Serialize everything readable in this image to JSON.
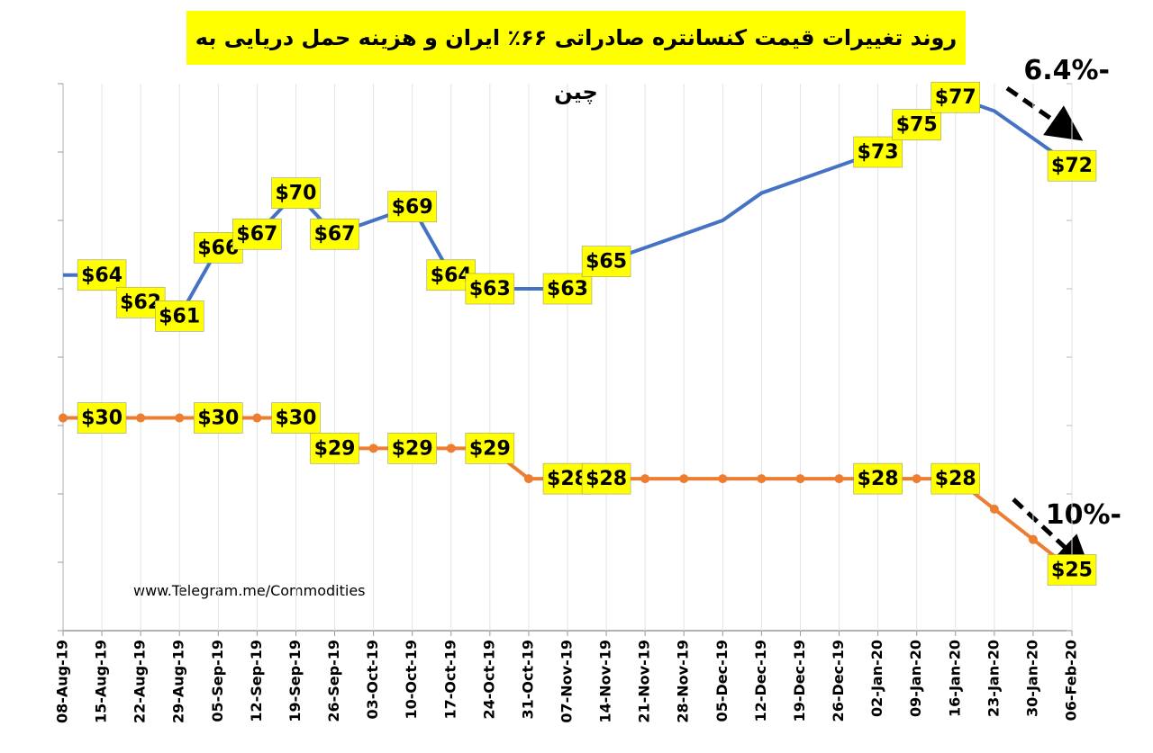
{
  "chart_data": {
    "type": "line",
    "title": "روند تغییرات قیمت کنسانتره صادراتی ۶۶٪ ایران و هزینه حمل دریایی به چین",
    "categories": [
      "08-Aug-19",
      "15-Aug-19",
      "22-Aug-19",
      "29-Aug-19",
      "05-Sep-19",
      "12-Sep-19",
      "19-Sep-19",
      "26-Sep-19",
      "03-Oct-19",
      "10-Oct-19",
      "17-Oct-19",
      "24-Oct-19",
      "31-Oct-19",
      "07-Nov-19",
      "14-Nov-19",
      "21-Nov-19",
      "28-Nov-19",
      "05-Dec-19",
      "12-Dec-19",
      "19-Dec-19",
      "26-Dec-19",
      "02-Jan-20",
      "09-Jan-20",
      "16-Jan-20",
      "23-Jan-20",
      "30-Jan-20",
      "06-Feb-20"
    ],
    "series": [
      {
        "color": "#4472c4",
        "values": [
          64,
          64,
          62,
          61,
          66,
          67,
          70,
          67,
          68,
          69,
          64,
          63,
          63,
          63,
          65,
          66,
          67,
          68,
          70,
          71,
          72,
          73,
          75,
          77,
          76,
          74,
          72
        ],
        "value_labels": [
          null,
          "$64",
          "$62",
          "$61",
          "$66",
          "$67",
          "$70",
          "$67",
          null,
          "$69",
          "$64",
          "$63",
          null,
          "$63",
          "$65",
          null,
          null,
          null,
          null,
          null,
          null,
          "$73",
          "$75",
          "$77",
          null,
          null,
          "$72"
        ]
      },
      {
        "color": "#ed7d31",
        "axis": "y2",
        "marker": true,
        "values": [
          30,
          30,
          30,
          30,
          30,
          30,
          30,
          29,
          29,
          29,
          29,
          29,
          28,
          28,
          28,
          28,
          28,
          28,
          28,
          28,
          28,
          28,
          28,
          28,
          27,
          26,
          25
        ],
        "value_labels": [
          null,
          "$30",
          null,
          null,
          "$30",
          null,
          "$30",
          "$29",
          null,
          "$29",
          null,
          "$29",
          null,
          "$28",
          "$28",
          null,
          null,
          null,
          null,
          null,
          null,
          "$28",
          null,
          "$28",
          null,
          null,
          "$25"
        ]
      }
    ],
    "ylim": [
      38,
      78
    ],
    "yticks": [
      38,
      43,
      48,
      53,
      58,
      63,
      68,
      73,
      78
    ],
    "y2lim": [
      23,
      41
    ],
    "annotations": [
      "6.4%-",
      "10%-",
      "www.Telegram.me/Commodities"
    ]
  }
}
